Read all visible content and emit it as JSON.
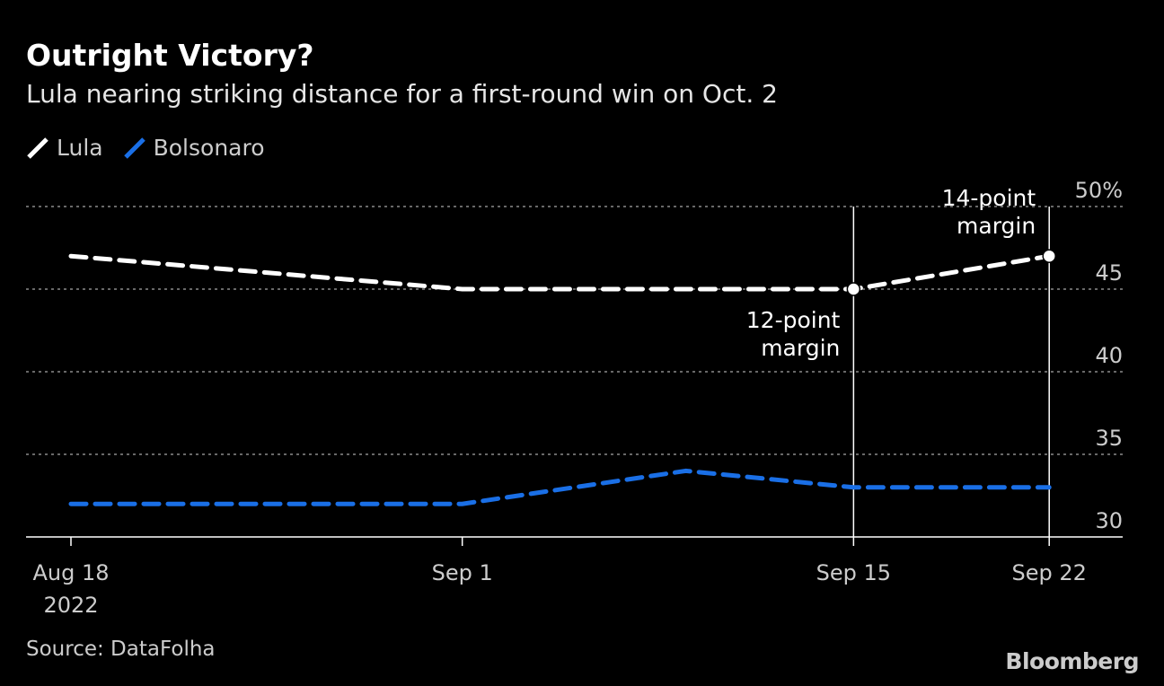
{
  "chart_data": {
    "type": "line",
    "title": "Outright Victory?",
    "subtitle": "Lula nearing striking distance for a first-round win on Oct. 2",
    "x": [
      "2022-08-18",
      "2022-09-01",
      "2022-09-09",
      "2022-09-15",
      "2022-09-22"
    ],
    "series": [
      {
        "name": "Lula",
        "values": [
          47,
          45,
          45,
          45,
          47
        ],
        "color": "#ffffff",
        "style": "dashed"
      },
      {
        "name": "Bolsonaro",
        "values": [
          32,
          32,
          34,
          33,
          33
        ],
        "color": "#1a6fe6",
        "style": "dashed"
      }
    ],
    "ylim": [
      30,
      50
    ],
    "y_ticks": [
      {
        "value": 50,
        "label": "50%"
      },
      {
        "value": 45,
        "label": "45"
      },
      {
        "value": 40,
        "label": "40"
      },
      {
        "value": 35,
        "label": "35"
      },
      {
        "value": 30,
        "label": "30"
      }
    ],
    "x_ticks": [
      {
        "date": "2022-08-18",
        "label": "Aug 18",
        "sublabel": "2022"
      },
      {
        "date": "2022-09-01",
        "label": "Sep 1"
      },
      {
        "date": "2022-09-15",
        "label": "Sep 15"
      },
      {
        "date": "2022-09-22",
        "label": "Sep 22"
      }
    ],
    "y_axis_position": "right",
    "grid": true,
    "legend_position": "top-left",
    "annotations": [
      {
        "date": "2022-09-15",
        "value": 45,
        "lines": [
          "12-point",
          "margin"
        ],
        "label_position": "below-left"
      },
      {
        "date": "2022-09-22",
        "value": 47,
        "lines": [
          "14-point",
          "margin"
        ],
        "label_position": "above-left"
      }
    ]
  },
  "source": "Source: DataFolha",
  "logo": "Bloomberg"
}
